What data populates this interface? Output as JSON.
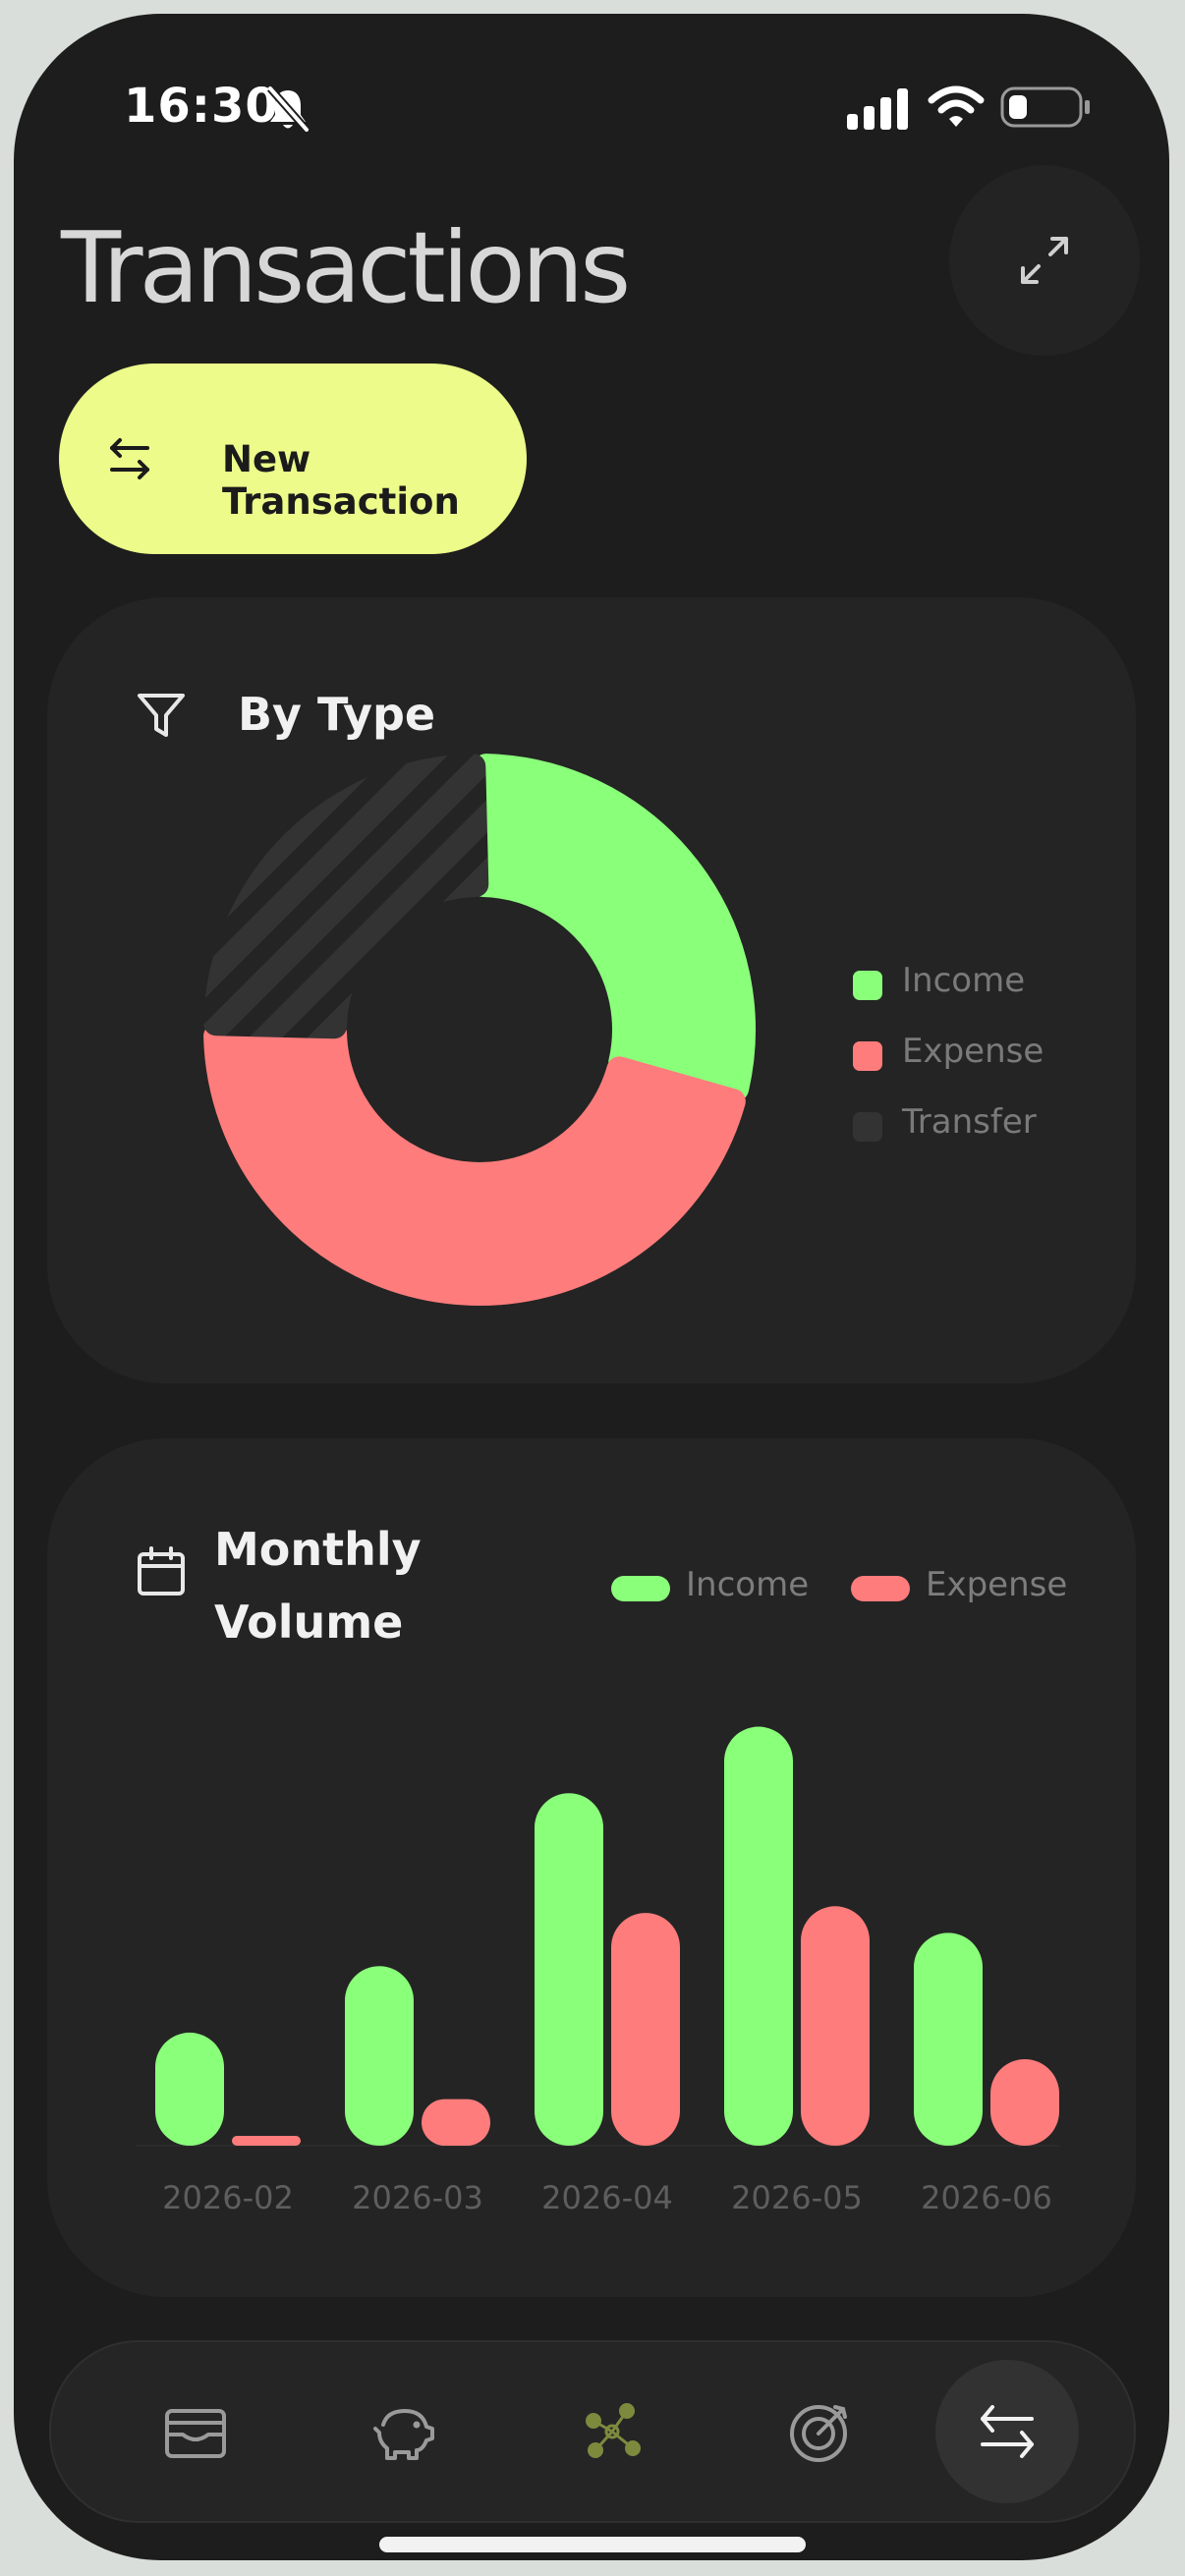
{
  "status_bar": {
    "time": "16:30",
    "icons": [
      "bell-slash-icon",
      "cellular-signal-icon",
      "wifi-icon",
      "battery-icon"
    ]
  },
  "header": {
    "title": "Transactions",
    "expand_icon": "expand-icon"
  },
  "new_transaction_button": {
    "label": "New Transaction",
    "icon": "swap-arrows-icon"
  },
  "by_type_card": {
    "title": "By Type",
    "icon": "filter-icon",
    "chart_data": {
      "type": "pie",
      "style": "donut",
      "title": "By Type",
      "slices": [
        {
          "label": "Income",
          "value": 29,
          "color": "#8aff7a"
        },
        {
          "label": "Expense",
          "value": 46,
          "color": "#ff7c7c"
        },
        {
          "label": "Transfer",
          "value": 25,
          "color": "#333333"
        }
      ],
      "legend_placement": "right"
    },
    "legend": [
      {
        "label": "Income",
        "color": "#8aff7a"
      },
      {
        "label": "Expense",
        "color": "#ff7c7c"
      },
      {
        "label": "Transfer",
        "color": "#333333"
      }
    ]
  },
  "monthly_volume_card": {
    "title_line1": "Monthly",
    "title_line2": "Volume",
    "icon": "calendar-icon",
    "legend": [
      {
        "label": "Income",
        "color": "#8aff7a"
      },
      {
        "label": "Expense",
        "color": "#ff7c7c"
      }
    ],
    "chart_data": {
      "type": "bar",
      "categories": [
        "2026-02",
        "2026-03",
        "2026-04",
        "2026-05",
        "2026-06"
      ],
      "series": [
        {
          "name": "Income",
          "values": [
            17,
            27,
            53,
            63,
            32
          ],
          "color": "#8aff7a"
        },
        {
          "name": "Expense",
          "values": [
            1,
            7,
            35,
            36,
            13
          ],
          "color": "#ff7c7c"
        }
      ],
      "ylim": [
        0,
        65
      ],
      "grid": false,
      "legend_placement": "top-right"
    }
  },
  "bottom_nav": {
    "items": [
      {
        "name": "wallet",
        "icon": "wallet-icon",
        "active": false
      },
      {
        "name": "savings",
        "icon": "piggy-bank-icon",
        "active": false
      },
      {
        "name": "network",
        "icon": "network-icon",
        "active": false
      },
      {
        "name": "goals",
        "icon": "target-icon",
        "active": false
      },
      {
        "name": "transactions",
        "icon": "swap-arrows-icon",
        "active": true
      }
    ]
  },
  "colors": {
    "accent": "#ecfb8a",
    "income": "#8aff7a",
    "expense": "#ff7c7c",
    "background": "#1d1d1d",
    "card": "#242424"
  }
}
